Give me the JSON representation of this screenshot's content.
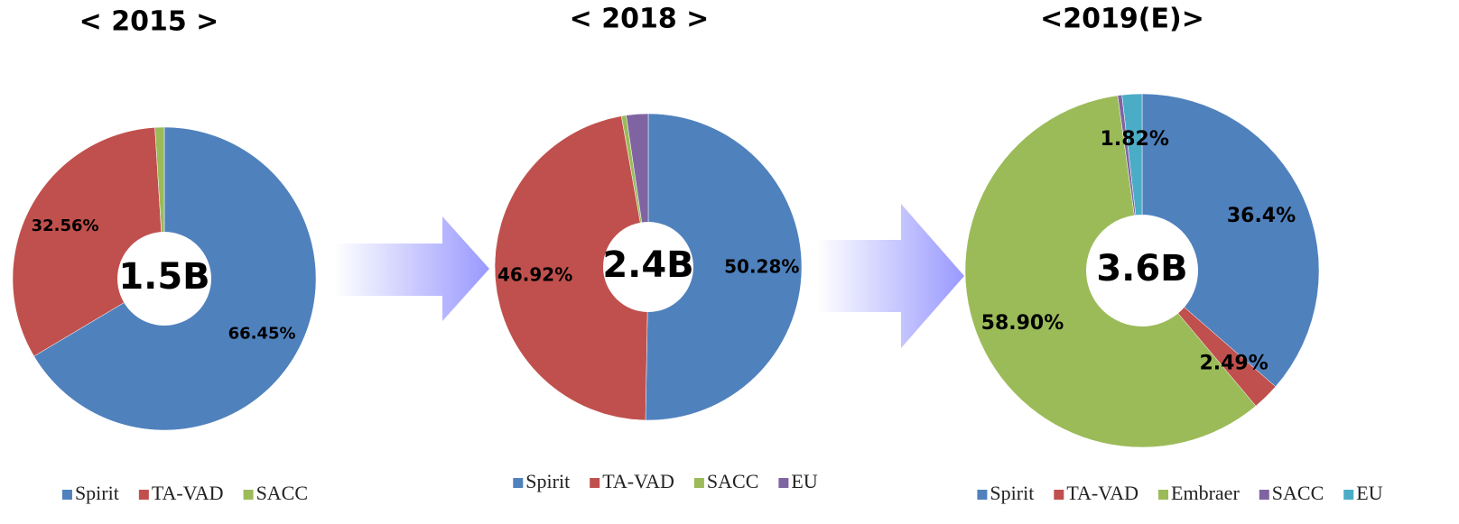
{
  "chart_data": [
    {
      "type": "pie",
      "title": "< 2015 >",
      "center_label": "1.5B",
      "categories": [
        "Spirit",
        "TA-VAD",
        "SACC"
      ],
      "values": [
        66.45,
        32.56,
        0.99
      ],
      "value_labels": [
        "66.45%",
        "32.56%",
        null
      ],
      "colors": [
        "#4f81bd",
        "#c0504d",
        "#9bbb59"
      ],
      "legend": "bottom"
    },
    {
      "type": "pie",
      "title": "< 2018 >",
      "center_label": "2.4B",
      "categories": [
        "Spirit",
        "TA-VAD",
        "SACC",
        "EU"
      ],
      "values": [
        50.28,
        46.92,
        0.5,
        2.3
      ],
      "value_labels": [
        "50.28%",
        "46.92%",
        null,
        null
      ],
      "colors": [
        "#4f81bd",
        "#c0504d",
        "#9bbb59",
        "#8064a2"
      ],
      "legend": "bottom"
    },
    {
      "type": "pie",
      "title": "<2019(E)>",
      "center_label": "3.6B",
      "categories": [
        "Spirit",
        "TA-VAD",
        "Embraer",
        "SACC",
        "EU"
      ],
      "values": [
        36.4,
        2.49,
        58.9,
        0.39,
        1.82
      ],
      "value_labels": [
        "36.4%",
        "2.49%",
        "58.90%",
        null,
        "1.82%"
      ],
      "colors": [
        "#4f81bd",
        "#c0504d",
        "#9bbb59",
        "#8064a2",
        "#4bacc6"
      ],
      "legend": "bottom"
    }
  ]
}
